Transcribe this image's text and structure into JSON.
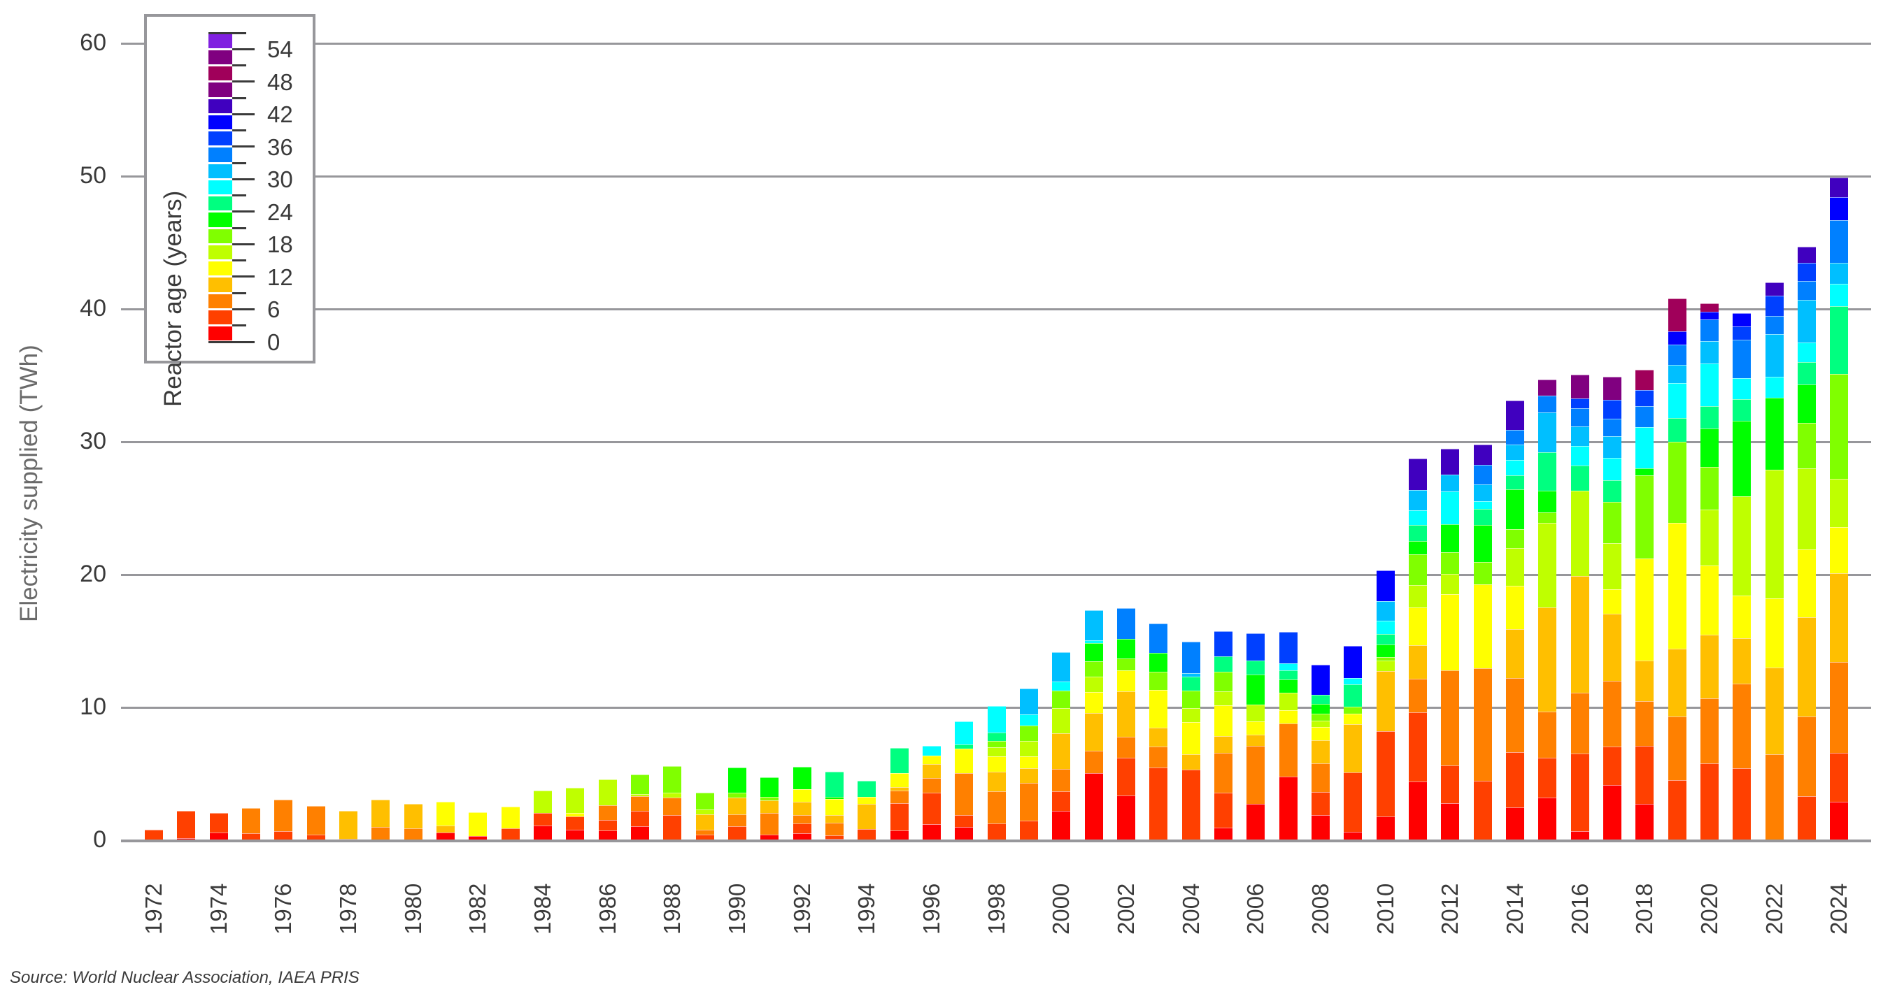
{
  "chart_data": {
    "type": "bar",
    "stacked": true,
    "title": "",
    "xlabel": "",
    "ylabel": "Electricity supplied (TWh)",
    "ylim": [
      0,
      60
    ],
    "yticks": [
      0,
      10,
      20,
      30,
      40,
      50,
      60
    ],
    "grid": true,
    "legend_title": "Reactor age (years)",
    "legend_position": "upper-left (inside plot)",
    "legend_type": "colorbar",
    "legend_ticks": [
      0,
      6,
      12,
      18,
      24,
      30,
      36,
      42,
      48,
      54
    ],
    "age_bins": [
      "0-3",
      "3-6",
      "6-9",
      "9-12",
      "12-15",
      "15-18",
      "18-21",
      "21-24",
      "24-27",
      "27-30",
      "30-33",
      "33-36",
      "36-39",
      "39-42",
      "42-45",
      "45-48",
      "48-51",
      "51-54",
      "54-57"
    ],
    "bin_colors": [
      "#ff0000",
      "#ff4000",
      "#ff8000",
      "#ffbf00",
      "#ffff00",
      "#bfff00",
      "#80ff00",
      "#00ff00",
      "#00ff80",
      "#00ffff",
      "#00bfff",
      "#0080ff",
      "#0040ff",
      "#0000ff",
      "#4000bf",
      "#800080",
      "#a0005a",
      "#800080",
      "#8020e0"
    ],
    "categories": [
      1972,
      1973,
      1974,
      1975,
      1976,
      1977,
      1978,
      1979,
      1980,
      1981,
      1982,
      1983,
      1984,
      1985,
      1986,
      1987,
      1988,
      1989,
      1990,
      1991,
      1992,
      1993,
      1994,
      1995,
      1996,
      1997,
      1998,
      1999,
      2000,
      2001,
      2002,
      2003,
      2004,
      2005,
      2006,
      2007,
      2008,
      2009,
      2010,
      2011,
      2012,
      2013,
      2014,
      2015,
      2016,
      2017,
      2018,
      2019,
      2020,
      2021,
      2022,
      2023,
      2024
    ],
    "x_tick_labels": [
      "1972",
      "1974",
      "1976",
      "1978",
      "1980",
      "1982",
      "1984",
      "1986",
      "1988",
      "1990",
      "1992",
      "1994",
      "1996",
      "1998",
      "2000",
      "2002",
      "2004",
      "2006",
      "2008",
      "2010",
      "2012",
      "2014",
      "2016",
      "2018",
      "2020",
      "2022",
      "2024"
    ],
    "segments_by_year": {
      "1972": [
        0,
        0.8
      ],
      "1973": [
        0.15,
        2.05
      ],
      "1974": [
        0.6,
        1.45
      ],
      "1975": [
        0,
        0.55,
        1.85
      ],
      "1976": [
        0,
        0.7,
        2.35
      ],
      "1977": [
        0,
        0.4,
        2.2
      ],
      "1978": [
        0,
        0,
        0.1,
        2.1
      ],
      "1979": [
        0,
        0,
        1.0,
        2.05
      ],
      "1980": [
        0,
        0,
        0.9,
        1.85
      ],
      "1981": [
        0.6,
        0,
        0,
        0.5,
        1.8
      ],
      "1982": [
        0.3,
        0,
        0,
        0,
        1.8
      ],
      "1983": [
        0,
        0.9,
        0,
        0,
        1.65
      ],
      "1984": [
        1.1,
        0.95,
        0,
        0,
        0,
        1.7
      ],
      "1985": [
        0.8,
        1.0,
        0,
        0,
        0.25,
        1.9
      ],
      "1986": [
        0.75,
        0.8,
        1.1,
        0,
        0,
        1.95
      ],
      "1987": [
        1.05,
        1.15,
        1.1,
        0,
        0,
        0.2,
        1.45
      ],
      "1988": [
        0,
        1.9,
        1.3,
        0,
        0,
        0.4,
        2.0
      ],
      "1989": [
        0,
        0.4,
        0.4,
        1.15,
        0,
        0.35,
        1.3
      ],
      "1990": [
        0,
        1.05,
        0.9,
        1.25,
        0,
        0,
        0.4,
        1.9
      ],
      "1991": [
        0.4,
        0,
        1.65,
        0.95,
        0,
        0,
        0.25,
        1.5
      ],
      "1992": [
        0.5,
        0.75,
        0.65,
        1.0,
        0.95,
        0,
        0,
        1.7
      ],
      "1993": [
        0.1,
        0.25,
        0.95,
        0.6,
        1.2,
        0,
        0,
        0.15,
        1.9
      ],
      "1994": [
        0.05,
        0.8,
        0,
        1.9,
        0.5,
        0,
        0,
        0,
        1.2
      ],
      "1995": [
        0.75,
        2.05,
        0.95,
        0.25,
        1.05,
        0,
        0,
        0,
        1.9
      ],
      "1996": [
        1.2,
        2.4,
        1.1,
        1.05,
        0.6,
        0,
        0,
        0,
        0,
        0.75
      ],
      "1997": [
        1.0,
        0.9,
        3.15,
        0,
        1.85,
        0,
        0,
        0,
        0.3,
        1.75
      ],
      "1998": [
        0,
        1.25,
        2.45,
        1.45,
        1.15,
        0.7,
        0.5,
        0,
        0.6,
        2.0
      ],
      "1999": [
        0,
        1.45,
        2.85,
        1.1,
        0.9,
        1.2,
        1.15,
        0,
        0,
        0.8,
        1.95
      ],
      "2000": [
        2.2,
        1.5,
        1.65,
        2.7,
        0,
        1.9,
        1.3,
        0,
        0,
        0.7,
        2.2
      ],
      "2001": [
        5.05,
        0,
        1.7,
        2.85,
        1.55,
        1.15,
        1.2,
        1.35,
        0,
        0.2,
        2.25
      ],
      "2002": [
        3.35,
        2.85,
        1.6,
        3.4,
        1.6,
        0,
        0.9,
        1.45,
        0,
        0,
        0,
        2.35
      ],
      "2003": [
        0,
        5.45,
        1.6,
        1.45,
        2.8,
        0,
        1.4,
        1.4,
        0,
        0,
        0,
        2.2
      ],
      "2004": [
        0,
        5.3,
        0,
        1.15,
        2.45,
        1.05,
        1.3,
        0,
        1.05,
        0,
        0.3,
        2.35
      ],
      "2005": [
        0.95,
        2.65,
        3.0,
        1.25,
        2.3,
        1.05,
        1.5,
        0,
        1.15,
        0,
        0,
        0,
        1.9
      ],
      "2006": [
        2.75,
        0,
        4.35,
        0.85,
        1.0,
        1.25,
        0,
        2.3,
        1.05,
        0,
        0,
        0,
        2.05
      ],
      "2007": [
        4.8,
        0,
        4.0,
        0,
        1.0,
        1.3,
        0,
        1.0,
        0.7,
        0.5,
        0,
        0,
        2.4
      ],
      "2008": [
        1.9,
        1.75,
        2.15,
        1.75,
        1.0,
        0.45,
        0.55,
        0.7,
        0.7,
        0,
        0,
        0,
        0,
        2.25
      ],
      "2009": [
        0.65,
        4.45,
        0,
        3.65,
        0.8,
        0,
        0.5,
        0,
        1.7,
        0.45,
        0,
        0,
        0,
        2.45
      ],
      "2010": [
        1.8,
        6.4,
        0,
        4.55,
        0,
        0.8,
        0.25,
        0.95,
        0.8,
        1.0,
        1.45,
        0,
        0,
        2.3
      ],
      "2011": [
        4.4,
        5.25,
        2.5,
        2.55,
        2.85,
        1.65,
        2.35,
        1.0,
        1.2,
        1.1,
        1.5,
        0,
        0,
        0,
        2.4
      ],
      "2012": [
        2.8,
        2.85,
        7.15,
        0,
        5.75,
        1.5,
        1.65,
        2.1,
        0,
        2.45,
        1.3,
        0,
        0,
        0,
        1.95
      ],
      "2013": [
        0,
        4.45,
        8.5,
        0,
        6.3,
        0,
        1.7,
        2.8,
        1.2,
        0.6,
        1.25,
        1.45,
        0,
        0,
        1.55
      ],
      "2014": [
        2.45,
        4.2,
        5.55,
        3.7,
        3.25,
        2.85,
        1.4,
        3.0,
        1.05,
        1.2,
        1.15,
        1.1,
        0,
        0,
        2.2
      ],
      "2015": [
        3.2,
        3.0,
        3.5,
        7.85,
        0,
        6.35,
        0.8,
        1.6,
        2.9,
        0,
        3.0,
        1.3,
        0,
        0,
        0,
        1.2
      ],
      "2016": [
        0.7,
        5.85,
        4.55,
        8.8,
        0,
        6.4,
        0,
        0,
        1.9,
        1.5,
        1.45,
        1.4,
        0.7,
        0,
        0,
        1.8
      ],
      "2017": [
        4.15,
        2.9,
        4.95,
        5.05,
        1.85,
        3.45,
        3.1,
        0,
        1.65,
        1.7,
        1.6,
        1.35,
        1.4,
        0,
        0,
        1.75
      ],
      "2018": [
        2.75,
        4.35,
        3.35,
        3.1,
        7.65,
        0,
        6.3,
        0.5,
        0,
        3.1,
        0,
        1.6,
        1.2,
        0,
        0,
        0,
        1.5
      ],
      "2019": [
        0,
        4.5,
        4.8,
        5.1,
        9.5,
        0,
        6.1,
        0,
        1.8,
        2.6,
        1.4,
        1.5,
        0,
        1.0,
        0,
        0,
        2.5
      ],
      "2020": [
        0,
        5.8,
        4.9,
        4.8,
        5.2,
        4.2,
        3.2,
        2.9,
        1.7,
        3.2,
        1.7,
        1.6,
        0,
        0.6,
        0,
        0,
        0.6
      ],
      "2021": [
        0,
        5.4,
        6.4,
        3.4,
        3.2,
        7.5,
        0,
        5.7,
        1.6,
        1.6,
        0,
        2.9,
        1.0,
        1.0
      ],
      "2022": [
        0,
        0,
        6.5,
        6.5,
        5.2,
        9.7,
        0,
        5.4,
        0,
        1.6,
        3.2,
        1.4,
        1.5,
        0,
        1.0
      ],
      "2023": [
        0,
        3.3,
        6.0,
        7.5,
        5.1,
        6.1,
        3.4,
        2.9,
        1.7,
        1.5,
        3.2,
        1.4,
        1.4,
        0,
        1.2
      ],
      "2024": [
        2.9,
        3.7,
        6.8,
        6.7,
        3.5,
        3.6,
        7.9,
        0,
        5.1,
        1.7,
        1.6,
        3.2,
        0,
        1.7,
        1.5
      ]
    },
    "totals": {
      "1972": 0.8,
      "1973": 2.2,
      "1974": 2.05,
      "1975": 2.4,
      "1976": 3.05,
      "1977": 2.6,
      "1978": 2.2,
      "1979": 3.05,
      "1980": 2.75,
      "1981": 2.9,
      "1982": 2.1,
      "1983": 2.55,
      "1984": 3.75,
      "1985": 3.95,
      "1986": 4.6,
      "1987": 4.95,
      "1988": 5.6,
      "1989": 3.6,
      "1990": 5.5,
      "1991": 4.75,
      "1992": 5.55,
      "1993": 5.15,
      "1994": 4.45,
      "1995": 6.95,
      "1996": 7.1,
      "1997": 9.0,
      "1998": 10.1,
      "1999": 11.4,
      "2000": 14.15,
      "2001": 17.3,
      "2002": 17.5,
      "2003": 16.3,
      "2004": 14.95,
      "2005": 15.75,
      "2006": 15.55,
      "2007": 15.7,
      "2008": 13.15,
      "2009": 14.6,
      "2010": 20.3,
      "2011": 28.75,
      "2012": 29.5,
      "2013": 29.8,
      "2014": 33.1,
      "2015": 34.7,
      "2016": 35.05,
      "2017": 34.9,
      "2018": 35.4,
      "2019": 40.8,
      "2020": 40.4,
      "2021": 39.7,
      "2022": 42.0,
      "2023": 44.7,
      "2024": 49.9
    }
  },
  "legend": {
    "title": "Reactor age (years)",
    "tick_labels": [
      "0",
      "6",
      "12",
      "18",
      "24",
      "30",
      "36",
      "42",
      "48",
      "54"
    ]
  },
  "axes": {
    "y_title": "Electricity supplied (TWh)",
    "y_tick_labels": [
      "0",
      "10",
      "20",
      "30",
      "40",
      "50",
      "60"
    ]
  },
  "source": "Source: World Nuclear Association, IAEA PRIS"
}
